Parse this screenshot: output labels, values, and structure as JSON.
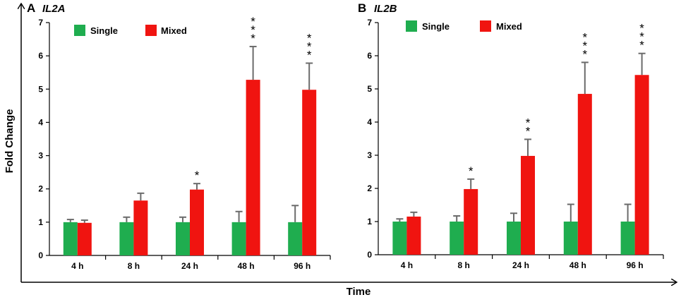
{
  "figure": {
    "ylabel": "Fold  Change",
    "xlabel": "Time"
  },
  "legend": {
    "single_label": "Single",
    "mixed_label": "Mixed"
  },
  "colors": {
    "single": "#1fad4f",
    "mixed": "#f01410",
    "axis": "#000000",
    "error": "#6b6b6b"
  },
  "chart_data": [
    {
      "type": "bar",
      "panel": "A",
      "title": "IL2A",
      "categories": [
        "4 h",
        "8 h",
        "24 h",
        "48 h",
        "96 h"
      ],
      "ylim": [
        0,
        7
      ],
      "yticks": [
        "0",
        "1",
        "2",
        "3",
        "4",
        "5",
        "6",
        "7"
      ],
      "series": [
        {
          "name": "Single",
          "values": [
            1.0,
            1.0,
            1.0,
            1.0,
            1.0
          ],
          "errors": [
            0.08,
            0.15,
            0.15,
            0.32,
            0.5
          ]
        },
        {
          "name": "Mixed",
          "values": [
            0.98,
            1.65,
            1.98,
            5.28,
            4.98
          ],
          "errors": [
            0.08,
            0.22,
            0.18,
            1.0,
            0.8
          ]
        }
      ],
      "significance": [
        "",
        "",
        "*",
        "***",
        "***"
      ]
    },
    {
      "type": "bar",
      "panel": "B",
      "title": "IL2B",
      "categories": [
        "4 h",
        "8 h",
        "24 h",
        "48 h",
        "96 h"
      ],
      "ylim": [
        0,
        7
      ],
      "yticks": [
        "0",
        "1",
        "2",
        "3",
        "4",
        "5",
        "6",
        "7"
      ],
      "series": [
        {
          "name": "Single",
          "values": [
            1.0,
            1.0,
            1.0,
            1.0,
            1.0
          ],
          "errors": [
            0.08,
            0.17,
            0.25,
            0.52,
            0.52
          ]
        },
        {
          "name": "Mixed",
          "values": [
            1.15,
            1.98,
            2.98,
            4.85,
            5.42
          ],
          "errors": [
            0.13,
            0.3,
            0.5,
            0.95,
            0.65
          ]
        }
      ],
      "significance": [
        "",
        "*",
        "**",
        "***",
        "***"
      ]
    }
  ]
}
